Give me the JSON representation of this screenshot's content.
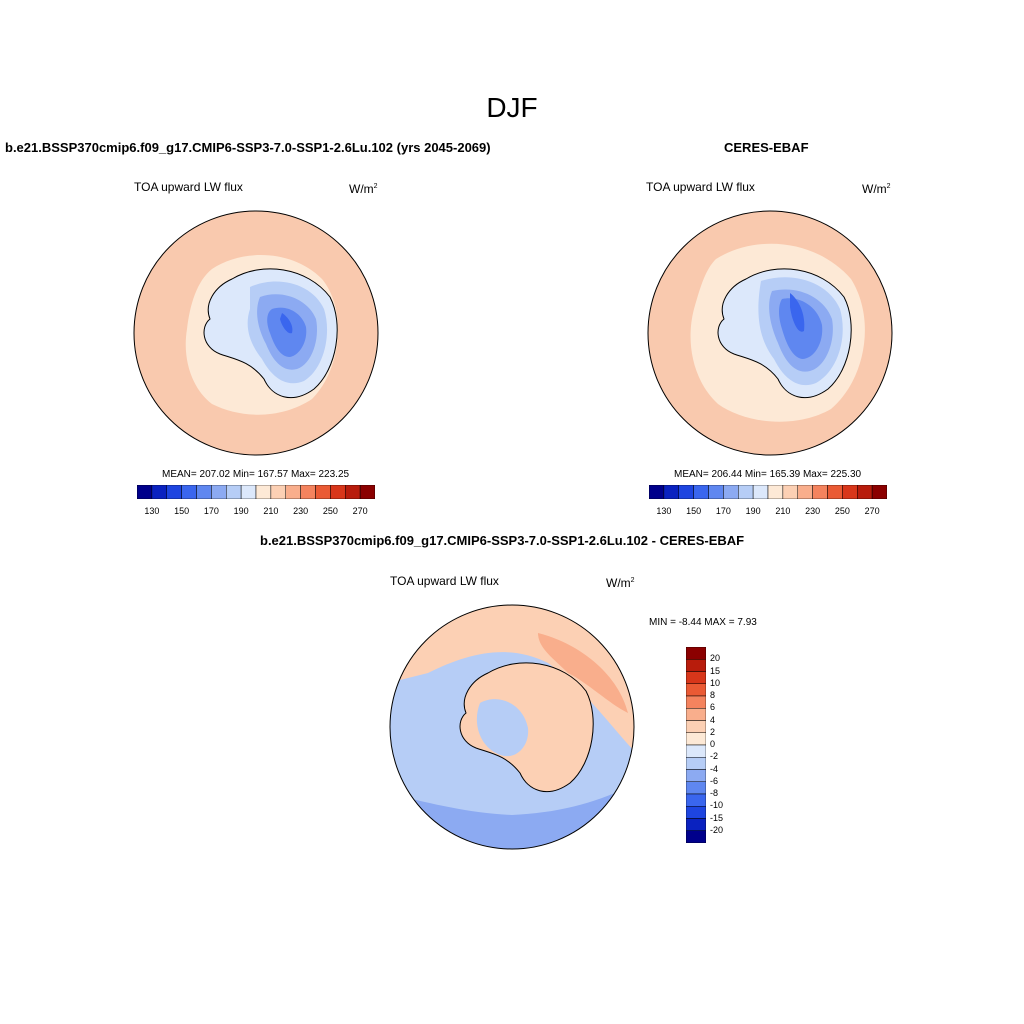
{
  "figure": {
    "title": "DJF"
  },
  "panels": [
    {
      "title": "b.e21.BSSP370cmip6.f09_g17.CMIP6-SSP3-7.0-SSP1-2.6Lu.102 (yrs 2045-2069)",
      "variable": "TOA upward LW flux",
      "units_base": "W/m",
      "units_exp": "2",
      "stats": "MEAN= 207.02  Min= 167.57  Max= 223.25"
    },
    {
      "title": "CERES-EBAF",
      "variable": "TOA upward LW flux",
      "units_base": "W/m",
      "units_exp": "2",
      "stats": "MEAN= 206.44  Min= 165.39  Max= 225.30"
    },
    {
      "title": "b.e21.BSSP370cmip6.f09_g17.CMIP6-SSP3-7.0-SSP1-2.6Lu.102 - CERES-EBAF",
      "variable": "TOA upward LW flux",
      "units_base": "W/m",
      "units_exp": "2",
      "stats": "MIN =  -8.44 MAX =   7.93"
    }
  ],
  "colorbar_abs": {
    "colors": [
      "#00008b",
      "#0a22c0",
      "#1e45e0",
      "#3a66ee",
      "#5f87f0",
      "#8caaf2",
      "#b6cdf6",
      "#dce8fb",
      "#fde9d6",
      "#fcd0b4",
      "#f9ae8c",
      "#f4835e",
      "#ea5a34",
      "#d8361a",
      "#b81c0c",
      "#8b0000"
    ],
    "labels": [
      "130",
      "150",
      "170",
      "190",
      "210",
      "230",
      "250",
      "270"
    ]
  },
  "colorbar_diff": {
    "colors": [
      "#00008b",
      "#0a22c0",
      "#1e45e0",
      "#3a66ee",
      "#5f87f0",
      "#8caaf2",
      "#b6cdf6",
      "#dce8fb",
      "#fde9d6",
      "#fcd0b4",
      "#f9ae8c",
      "#f4835e",
      "#ea5a34",
      "#d8361a",
      "#b81c0c",
      "#8b0000"
    ],
    "labels": [
      "20",
      "15",
      "10",
      "8",
      "6",
      "4",
      "2",
      "0",
      "-2",
      "-4",
      "-6",
      "-8",
      "-10",
      "-15",
      "-20"
    ]
  },
  "map_colors": {
    "ocean_warm": "#f9c9ae",
    "ring_light": "#fde9d6",
    "ice_pale": "#dce8fb",
    "ice_light": "#b6cdf6",
    "ice_mid": "#8caaf2",
    "ice_deep": "#5f87f0",
    "ice_core": "#3a66ee",
    "diff_pos": "#f9ae8c",
    "diff_pos2": "#fcd0b4",
    "diff_neg": "#b6cdf6",
    "diff_neg2": "#8caaf2"
  }
}
